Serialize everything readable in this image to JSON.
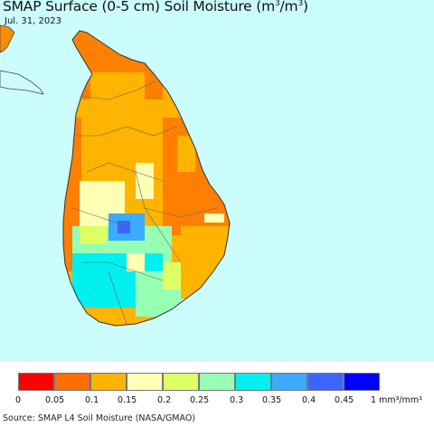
{
  "title": {
    "prefix": "SMAP Surface (0-5 cm) Soil Moisture (m",
    "sup1": "3",
    "mid": "/m",
    "sup2": "3",
    "suffix": ")"
  },
  "date": "Jul. 31, 2023",
  "colors": {
    "ocean": "#ccfdfd",
    "land_neighbor": "#ff8c00",
    "boundary": "#555555"
  },
  "legend": {
    "bins": [
      {
        "color": "#ff0000",
        "label": "0"
      },
      {
        "color": "#ff6e00",
        "label": "0.05"
      },
      {
        "color": "#ffb400",
        "label": "0.1"
      },
      {
        "color": "#ffffb4",
        "label": "0.15"
      },
      {
        "color": "#dcff64",
        "label": "0.2"
      },
      {
        "color": "#96ffb4",
        "label": "0.25"
      },
      {
        "color": "#00f0f0",
        "label": "0.3"
      },
      {
        "color": "#3caaff",
        "label": "0.35"
      },
      {
        "color": "#3c64ff",
        "label": "0.4"
      },
      {
        "color": "#0000ff",
        "label": "0.45"
      }
    ],
    "end_label": "1 mm³/mm³"
  },
  "source": "Source: SMAP L4 Soil Moisture (NASA/GMAO)",
  "map": {
    "region": "Sri Lanka",
    "zones": [
      {
        "name": "north-peninsula",
        "value_bin": "0.05-0.1"
      },
      {
        "name": "north-central",
        "value_bin": "0.1-0.15"
      },
      {
        "name": "east-coast",
        "value_bin": "0.05-0.1"
      },
      {
        "name": "west-coast",
        "value_bin": "0.05-0.1"
      },
      {
        "name": "central-west",
        "value_bin": "0.15-0.2"
      },
      {
        "name": "central-highlands",
        "value_bin": "0.35-0.4"
      },
      {
        "name": "south-west",
        "value_bin": "0.3-0.35"
      },
      {
        "name": "south",
        "value_bin": "0.25-0.3"
      },
      {
        "name": "south-east",
        "value_bin": "0.1-0.15"
      }
    ]
  }
}
